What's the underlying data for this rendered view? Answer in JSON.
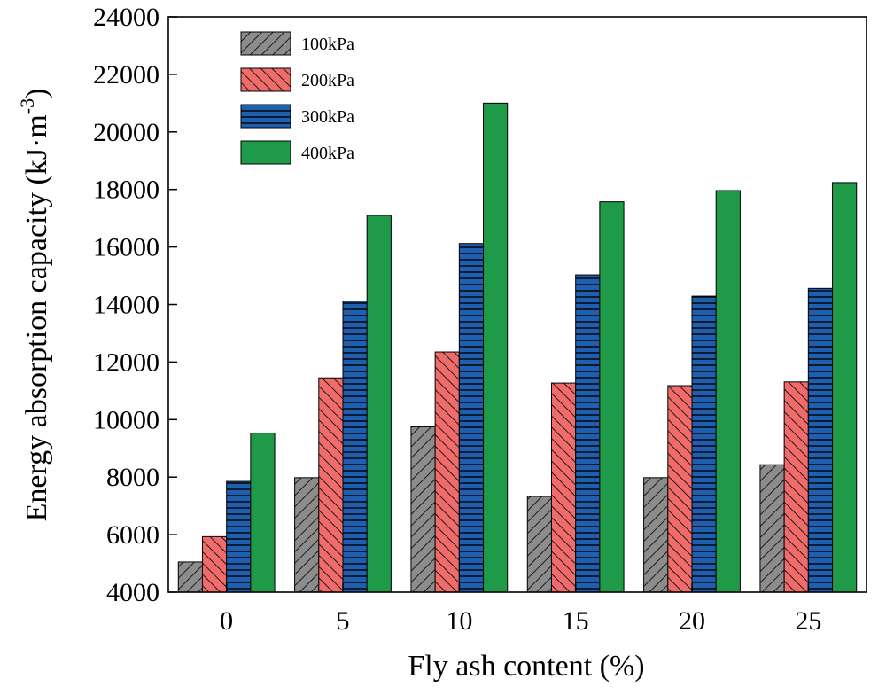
{
  "chart_data": {
    "type": "bar",
    "title": "",
    "xlabel": "Fly ash content (%)",
    "ylabel": "Energy absorption capacity (kJ·m",
    "ylabel_unit_exponent": "-3",
    "ylabel_close": ")",
    "ylim": [
      4000,
      24000
    ],
    "yticks": [
      "4000",
      "6000",
      "8000",
      "10000",
      "12000",
      "14000",
      "16000",
      "18000",
      "20000",
      "22000",
      "24000"
    ],
    "categories": [
      "0",
      "5",
      "10",
      "15",
      "20",
      "25"
    ],
    "legend_position": "top-left",
    "series": [
      {
        "name": "100kPa",
        "color": "#8c8c8c",
        "pattern": "diagonal-hatch",
        "values": [
          5050,
          7980,
          9750,
          7330,
          7980,
          8430
        ]
      },
      {
        "name": "200kPa",
        "color": "#f26b6b",
        "pattern": "back-diagonal-hatch",
        "values": [
          5930,
          11450,
          12350,
          11270,
          11180,
          11310
        ]
      },
      {
        "name": "300kPa",
        "color": "#1f5fb0",
        "pattern": "horizontal-lines",
        "values": [
          7850,
          14120,
          16120,
          15030,
          14290,
          14560
        ]
      },
      {
        "name": "400kPa",
        "color": "#1e9a48",
        "pattern": "solid",
        "values": [
          9530,
          17100,
          21000,
          17570,
          17960,
          18240
        ]
      }
    ]
  }
}
